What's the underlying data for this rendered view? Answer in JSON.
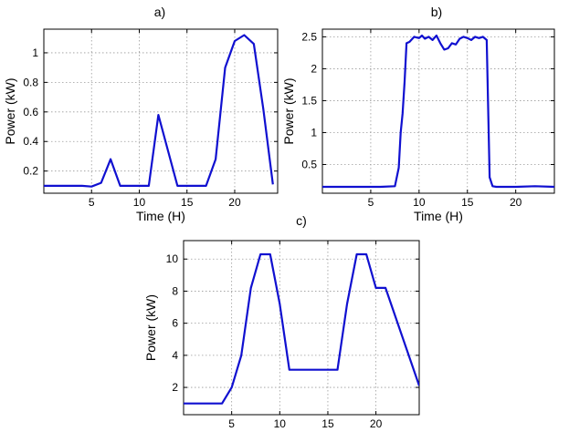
{
  "chart_data": [
    {
      "id": "a",
      "type": "line",
      "title": "a)",
      "xlabel": "Time (H)",
      "ylabel": "Power (kW)",
      "xlim": [
        0,
        24.5
      ],
      "ylim": [
        0.05,
        1.16
      ],
      "xticks": [
        5,
        10,
        15,
        20
      ],
      "yticks": [
        0.2,
        0.4,
        0.6,
        0.8,
        1
      ],
      "ytick_labels": [
        "0.2",
        "0.4",
        "0.6",
        "0.8",
        "1"
      ],
      "grid": true,
      "line_color": "#1010d0",
      "series": [
        {
          "x": [
            0,
            4,
            5,
            6,
            7,
            8,
            10,
            11,
            12,
            14,
            15,
            16,
            17,
            18,
            19,
            20,
            21,
            22,
            23,
            24
          ],
          "y": [
            0.1,
            0.1,
            0.095,
            0.12,
            0.28,
            0.1,
            0.1,
            0.1,
            0.58,
            0.1,
            0.1,
            0.1,
            0.1,
            0.28,
            0.9,
            1.08,
            1.12,
            1.06,
            0.62,
            0.11
          ]
        }
      ]
    },
    {
      "id": "b",
      "type": "line",
      "title": "b)",
      "xlabel": "Time (H)",
      "ylabel": "Power (kW)",
      "xlim": [
        0,
        24
      ],
      "ylim": [
        0.05,
        2.62
      ],
      "xticks": [
        5,
        10,
        15,
        20
      ],
      "yticks": [
        0.5,
        1,
        1.5,
        2,
        2.5
      ],
      "ytick_labels": [
        "0.5",
        "1",
        "1.5",
        "2",
        "2.5"
      ],
      "grid": true,
      "line_color": "#1010d0",
      "series": [
        {
          "x": [
            0,
            3,
            6,
            7.5,
            7.9,
            8.1,
            8.3,
            8.5,
            8.7,
            9,
            9.5,
            10,
            10.3,
            10.6,
            11,
            11.4,
            11.8,
            12.2,
            12.6,
            13,
            13.4,
            13.8,
            14.2,
            14.6,
            15,
            15.4,
            15.8,
            16.2,
            16.6,
            17,
            17.3,
            17.6,
            18,
            20,
            22,
            24
          ],
          "y": [
            0.15,
            0.15,
            0.15,
            0.16,
            0.45,
            1.0,
            1.3,
            1.8,
            2.4,
            2.42,
            2.5,
            2.48,
            2.52,
            2.47,
            2.5,
            2.45,
            2.52,
            2.4,
            2.3,
            2.32,
            2.4,
            2.38,
            2.47,
            2.5,
            2.48,
            2.45,
            2.5,
            2.48,
            2.5,
            2.45,
            0.3,
            0.16,
            0.15,
            0.15,
            0.16,
            0.15
          ]
        }
      ]
    },
    {
      "id": "c",
      "type": "line",
      "title": "c)",
      "xlabel": "Time (H)",
      "ylabel": "Power (kW)",
      "xlim": [
        0,
        24.5
      ],
      "ylim": [
        0.3,
        11.15
      ],
      "xticks": [
        5,
        10,
        15,
        20
      ],
      "yticks": [
        2,
        4,
        6,
        8,
        10
      ],
      "ytick_labels": [
        "2",
        "4",
        "6",
        "8",
        "10"
      ],
      "grid": true,
      "line_color": "#1010d0",
      "series": [
        {
          "x": [
            0,
            4,
            5,
            6,
            7,
            8,
            9,
            10,
            11,
            12,
            16,
            17,
            18,
            19,
            20,
            21,
            24.5
          ],
          "y": [
            1,
            1,
            2,
            4,
            8.2,
            10.3,
            10.3,
            7.2,
            3.1,
            3.1,
            3.1,
            7.2,
            10.3,
            10.3,
            8.2,
            8.2,
            2.1
          ]
        }
      ]
    }
  ]
}
